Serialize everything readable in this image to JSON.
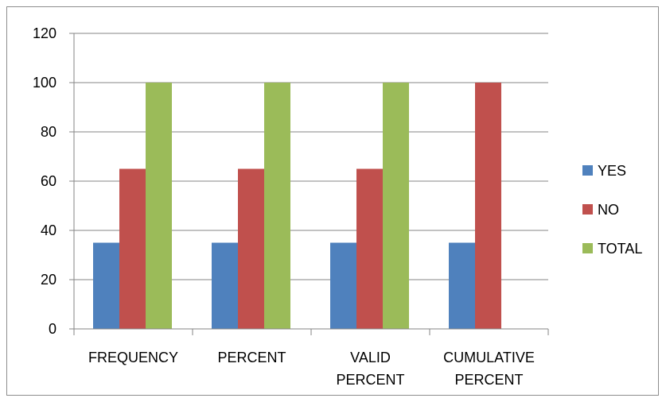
{
  "chart_data": {
    "type": "bar",
    "categories": [
      [
        "FREQUENCY"
      ],
      [
        "PERCENT"
      ],
      [
        "VALID",
        "PERCENT"
      ],
      [
        "CUMULATIVE",
        "PERCENT"
      ]
    ],
    "series": [
      {
        "name": "YES",
        "color": "#4f81bd",
        "values": [
          35,
          35,
          35,
          35
        ]
      },
      {
        "name": "NO",
        "color": "#c0504d",
        "values": [
          65,
          65,
          65,
          100
        ]
      },
      {
        "name": "TOTAL",
        "color": "#9bbb59",
        "values": [
          100,
          100,
          100,
          null
        ]
      }
    ],
    "ylim": [
      0,
      120
    ],
    "yticks": [
      0,
      20,
      40,
      60,
      80,
      100,
      120
    ],
    "grid": true,
    "legend": "right",
    "title": "",
    "xlabel": "",
    "ylabel": ""
  }
}
